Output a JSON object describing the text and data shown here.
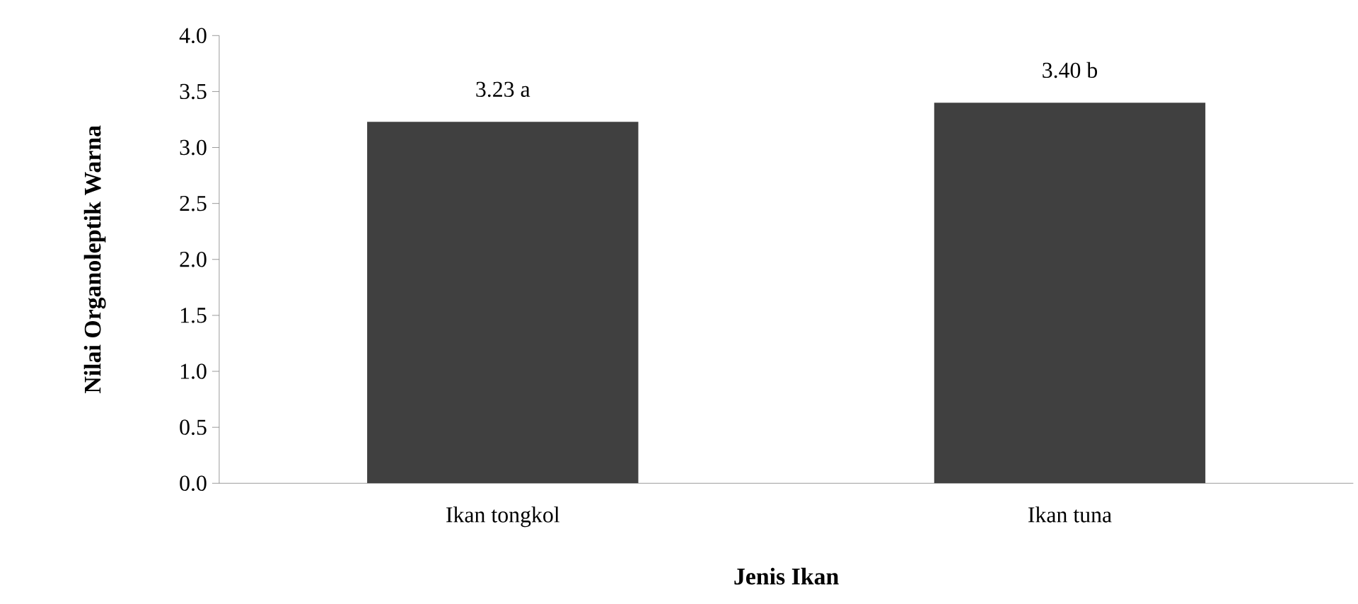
{
  "chart_data": {
    "type": "bar",
    "xlabel": "Jenis Ikan",
    "ylabel": "Nilai  Organoleptik Warna",
    "categories": [
      "Ikan tongkol",
      "Ikan tuna"
    ],
    "values": [
      3.23,
      3.4
    ],
    "color": "#404040",
    "value_labels": [
      "3.23 a",
      "3.40 b"
    ],
    "ylim": [
      0,
      4
    ],
    "yticks": [
      {
        "value": 0,
        "label": "0.0"
      },
      {
        "value": 0.5,
        "label": "0.5"
      },
      {
        "value": 1,
        "label": "1.0"
      },
      {
        "value": 1.5,
        "label": "1.5"
      },
      {
        "value": 2,
        "label": "2.0"
      },
      {
        "value": 2.5,
        "label": "2.5"
      },
      {
        "value": 3,
        "label": "3.0"
      },
      {
        "value": 3.5,
        "label": "3.5"
      },
      {
        "value": 4,
        "label": "4.0"
      }
    ],
    "grid": false
  }
}
